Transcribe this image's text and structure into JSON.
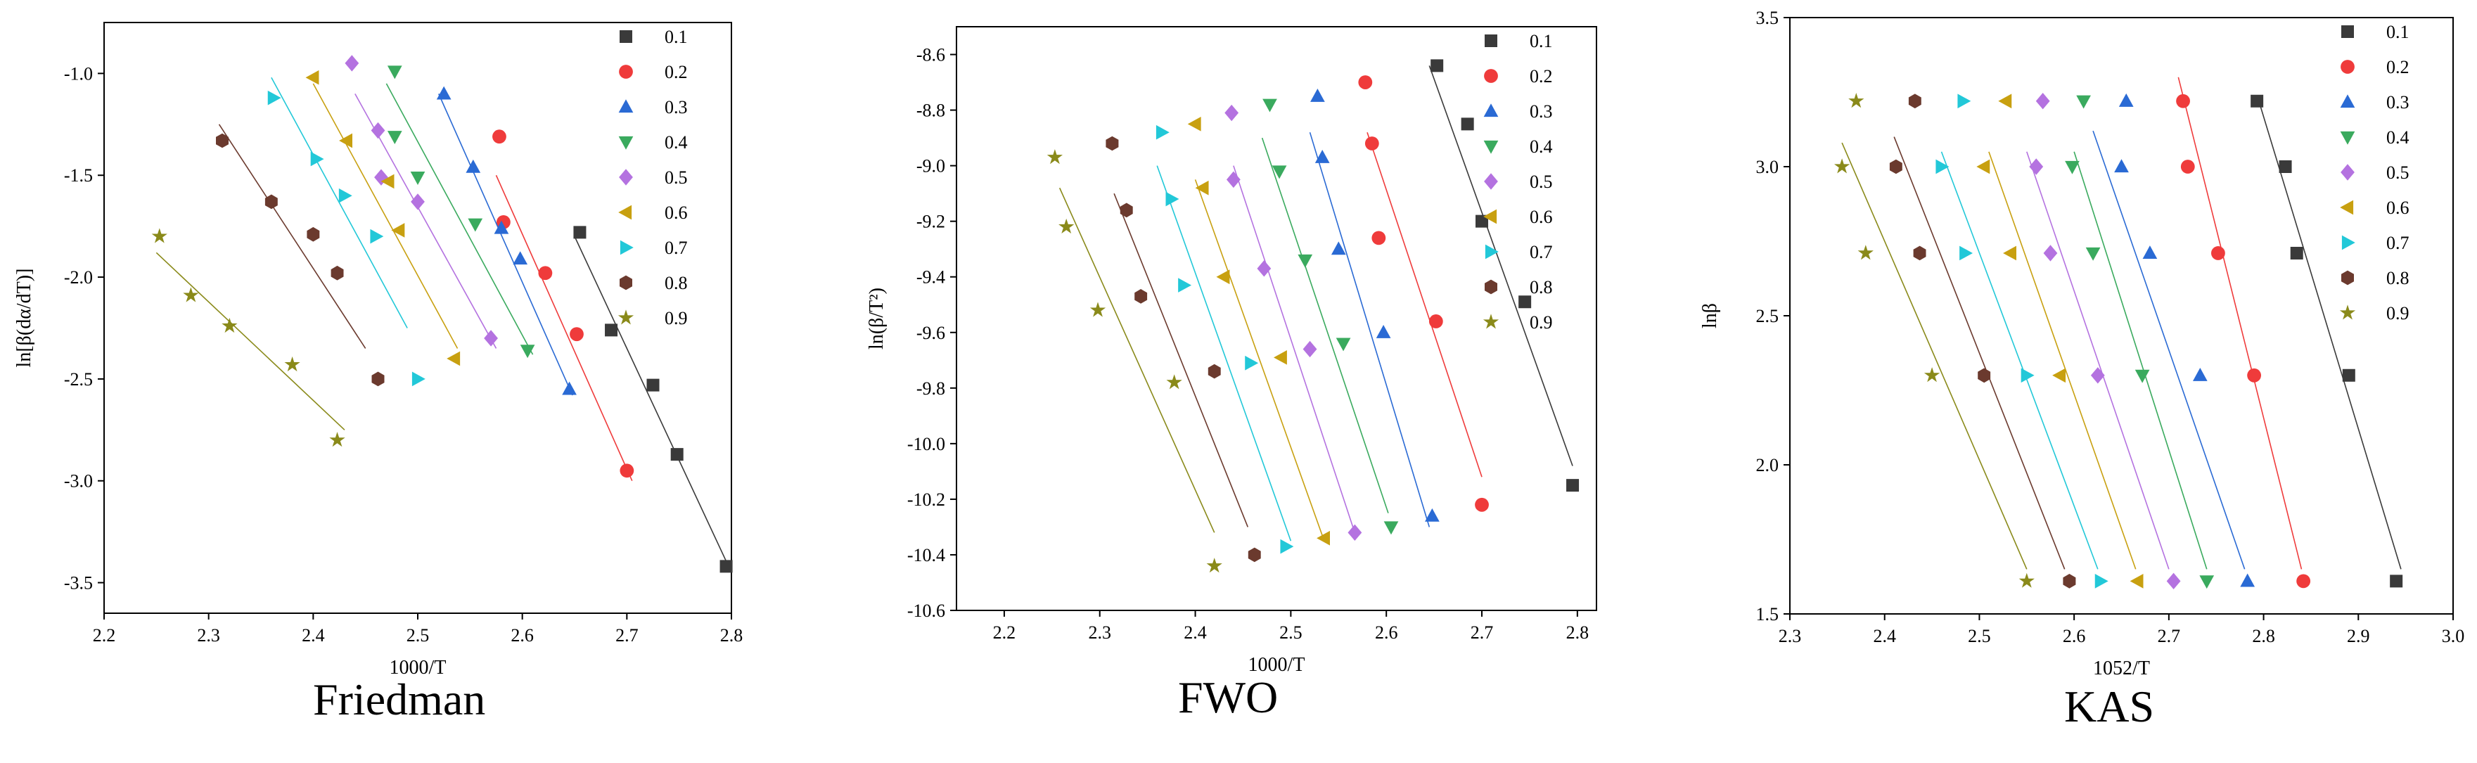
{
  "chart_data": [
    {
      "type": "scatter",
      "caption": "Friedman",
      "xlabel": "1000/T",
      "ylabel": "ln[β(dα/dT)]",
      "xlim": [
        2.2,
        2.8
      ],
      "ylim": [
        -3.65,
        -0.75
      ],
      "xticks": [
        "2.2",
        "2.3",
        "2.4",
        "2.5",
        "2.6",
        "2.7",
        "2.8"
      ],
      "yticks": [
        "-1.0",
        "-1.5",
        "-2.0",
        "-2.5",
        "-3.0",
        "-3.5"
      ],
      "legend_position": "top-right",
      "series": [
        {
          "name": "0.1",
          "color": "#3a3a3a",
          "marker": "square",
          "x": [
            2.655,
            2.685,
            2.725,
            2.748,
            2.795
          ],
          "y": [
            -1.78,
            -2.26,
            -2.53,
            -2.87,
            -3.42
          ],
          "fit": [
            [
              2.65,
              -1.8
            ],
            [
              2.8,
              -3.45
            ]
          ]
        },
        {
          "name": "0.2",
          "color": "#ef3b3b",
          "marker": "circle",
          "x": [
            2.578,
            2.582,
            2.622,
            2.652,
            2.7
          ],
          "y": [
            -1.31,
            -1.73,
            -1.98,
            -2.28,
            -2.95
          ],
          "fit": [
            [
              2.575,
              -1.5
            ],
            [
              2.705,
              -3.0
            ]
          ]
        },
        {
          "name": "0.3",
          "color": "#2a6ad4",
          "marker": "triangle-up",
          "x": [
            2.525,
            2.553,
            2.58,
            2.598,
            2.645
          ],
          "y": [
            -1.1,
            -1.46,
            -1.76,
            -1.91,
            -2.55
          ],
          "fit": [
            [
              2.52,
              -1.1
            ],
            [
              2.648,
              -2.58
            ]
          ]
        },
        {
          "name": "0.4",
          "color": "#3aaa5e",
          "marker": "triangle-down",
          "x": [
            2.478,
            2.478,
            2.5,
            2.555,
            2.605
          ],
          "y": [
            -0.99,
            -1.31,
            -1.51,
            -1.74,
            -2.36
          ],
          "fit": [
            [
              2.47,
              -1.05
            ],
            [
              2.61,
              -2.38
            ]
          ]
        },
        {
          "name": "0.5",
          "color": "#b472e0",
          "marker": "diamond",
          "x": [
            2.437,
            2.462,
            2.465,
            2.5,
            2.57
          ],
          "y": [
            -0.95,
            -1.28,
            -1.51,
            -1.63,
            -2.3
          ],
          "fit": [
            [
              2.44,
              -1.1
            ],
            [
              2.575,
              -2.35
            ]
          ]
        },
        {
          "name": "0.6",
          "color": "#c8a010",
          "marker": "triangle-left",
          "x": [
            2.4,
            2.432,
            2.472,
            2.482,
            2.535
          ],
          "y": [
            -1.02,
            -1.33,
            -1.53,
            -1.77,
            -2.4
          ],
          "fit": [
            [
              2.4,
              -1.05
            ],
            [
              2.538,
              -2.35
            ]
          ]
        },
        {
          "name": "0.7",
          "color": "#22c8d8",
          "marker": "triangle-right",
          "x": [
            2.362,
            2.403,
            2.43,
            2.46,
            2.5
          ],
          "y": [
            -1.12,
            -1.42,
            -1.6,
            -1.8,
            -2.5
          ],
          "fit": [
            [
              2.36,
              -1.02
            ],
            [
              2.49,
              -2.25
            ]
          ]
        },
        {
          "name": "0.8",
          "color": "#6b3a2e",
          "marker": "hexagon",
          "x": [
            2.313,
            2.36,
            2.4,
            2.423,
            2.462
          ],
          "y": [
            -1.33,
            -1.63,
            -1.79,
            -1.98,
            -2.5
          ],
          "fit": [
            [
              2.31,
              -1.25
            ],
            [
              2.45,
              -2.35
            ]
          ]
        },
        {
          "name": "0.9",
          "color": "#8a8a1a",
          "marker": "star",
          "x": [
            2.253,
            2.283,
            2.32,
            2.38,
            2.423
          ],
          "y": [
            -1.8,
            -2.09,
            -2.24,
            -2.43,
            -2.8
          ],
          "fit": [
            [
              2.25,
              -1.88
            ],
            [
              2.43,
              -2.75
            ]
          ]
        }
      ]
    },
    {
      "type": "scatter",
      "caption": "FWO",
      "xlabel": "1000/T",
      "ylabel": "ln(β/T²)",
      "xlim": [
        2.15,
        2.82
      ],
      "ylim": [
        -10.6,
        -8.5
      ],
      "xticks": [
        "2.2",
        "2.3",
        "2.4",
        "2.5",
        "2.6",
        "2.7",
        "2.8"
      ],
      "yticks": [
        "-8.6",
        "-8.8",
        "-9.0",
        "-9.2",
        "-9.4",
        "-9.6",
        "-9.8",
        "-10.0",
        "-10.2",
        "-10.4",
        "-10.6"
      ],
      "legend_position": "top-right",
      "series": [
        {
          "name": "0.1",
          "color": "#3a3a3a",
          "marker": "square",
          "x": [
            2.653,
            2.685,
            2.7,
            2.745,
            2.795
          ],
          "y": [
            -8.64,
            -8.85,
            -9.2,
            -9.49,
            -10.15
          ],
          "fit": [
            [
              2.645,
              -8.64
            ],
            [
              2.795,
              -10.08
            ]
          ]
        },
        {
          "name": "0.2",
          "color": "#ef3b3b",
          "marker": "circle",
          "x": [
            2.578,
            2.585,
            2.592,
            2.652,
            2.7
          ],
          "y": [
            -8.7,
            -8.92,
            -9.26,
            -9.56,
            -10.22
          ],
          "fit": [
            [
              2.58,
              -8.88
            ],
            [
              2.7,
              -10.12
            ]
          ]
        },
        {
          "name": "0.3",
          "color": "#2a6ad4",
          "marker": "triangle-up",
          "x": [
            2.528,
            2.533,
            2.55,
            2.597,
            2.648
          ],
          "y": [
            -8.75,
            -8.97,
            -9.3,
            -9.6,
            -10.26
          ],
          "fit": [
            [
              2.52,
              -8.88
            ],
            [
              2.645,
              -10.3
            ]
          ]
        },
        {
          "name": "0.4",
          "color": "#3aaa5e",
          "marker": "triangle-down",
          "x": [
            2.478,
            2.488,
            2.515,
            2.555,
            2.605
          ],
          "y": [
            -8.78,
            -9.02,
            -9.34,
            -9.64,
            -10.3
          ],
          "fit": [
            [
              2.47,
              -8.9
            ],
            [
              2.602,
              -10.25
            ]
          ]
        },
        {
          "name": "0.5",
          "color": "#b472e0",
          "marker": "diamond",
          "x": [
            2.438,
            2.44,
            2.472,
            2.52,
            2.567
          ],
          "y": [
            -8.81,
            -9.05,
            -9.37,
            -9.66,
            -10.32
          ],
          "fit": [
            [
              2.44,
              -9.0
            ],
            [
              2.565,
              -10.3
            ]
          ]
        },
        {
          "name": "0.6",
          "color": "#c8a010",
          "marker": "triangle-left",
          "x": [
            2.4,
            2.408,
            2.43,
            2.49,
            2.535
          ],
          "y": [
            -8.85,
            -9.08,
            -9.4,
            -9.69,
            -10.34
          ],
          "fit": [
            [
              2.4,
              -9.05
            ],
            [
              2.535,
              -10.35
            ]
          ]
        },
        {
          "name": "0.7",
          "color": "#22c8d8",
          "marker": "triangle-right",
          "x": [
            2.365,
            2.375,
            2.388,
            2.458,
            2.495
          ],
          "y": [
            -8.88,
            -9.12,
            -9.43,
            -9.71,
            -10.37
          ],
          "fit": [
            [
              2.36,
              -9.0
            ],
            [
              2.5,
              -10.35
            ]
          ]
        },
        {
          "name": "0.8",
          "color": "#6b3a2e",
          "marker": "hexagon",
          "x": [
            2.313,
            2.328,
            2.343,
            2.42,
            2.462
          ],
          "y": [
            -8.92,
            -9.16,
            -9.47,
            -9.74,
            -10.4
          ],
          "fit": [
            [
              2.315,
              -9.1
            ],
            [
              2.455,
              -10.3
            ]
          ]
        },
        {
          "name": "0.9",
          "color": "#8a8a1a",
          "marker": "star",
          "x": [
            2.253,
            2.265,
            2.298,
            2.378,
            2.42
          ],
          "y": [
            -8.97,
            -9.22,
            -9.52,
            -9.78,
            -10.44
          ],
          "fit": [
            [
              2.258,
              -9.08
            ],
            [
              2.42,
              -10.32
            ]
          ]
        }
      ]
    },
    {
      "type": "scatter",
      "caption": "KAS",
      "xlabel": "1052/T",
      "ylabel": "lnβ",
      "xlim": [
        2.3,
        3.0
      ],
      "ylim": [
        1.5,
        3.5
      ],
      "xticks": [
        "2.3",
        "2.4",
        "2.5",
        "2.6",
        "2.7",
        "2.8",
        "2.9",
        "3.0"
      ],
      "yticks": [
        "1.5",
        "2.0",
        "2.5",
        "3.0",
        "3.5"
      ],
      "legend_position": "top-right",
      "series": [
        {
          "name": "0.1",
          "color": "#3a3a3a",
          "marker": "square",
          "x": [
            2.793,
            2.823,
            2.835,
            2.89,
            2.94
          ],
          "y": [
            3.22,
            3.0,
            2.71,
            2.3,
            1.61
          ],
          "fit": [
            [
              2.795,
              3.22
            ],
            [
              2.945,
              1.65
            ]
          ]
        },
        {
          "name": "0.2",
          "color": "#ef3b3b",
          "marker": "circle",
          "x": [
            2.715,
            2.72,
            2.752,
            2.79,
            2.842
          ],
          "y": [
            3.22,
            3.0,
            2.71,
            2.3,
            1.61
          ],
          "fit": [
            [
              2.71,
              3.3
            ],
            [
              2.84,
              1.65
            ]
          ]
        },
        {
          "name": "0.3",
          "color": "#2a6ad4",
          "marker": "triangle-up",
          "x": [
            2.655,
            2.65,
            2.68,
            2.733,
            2.783
          ],
          "y": [
            3.22,
            3.0,
            2.71,
            2.3,
            1.61
          ],
          "fit": [
            [
              2.62,
              3.12
            ],
            [
              2.78,
              1.65
            ]
          ]
        },
        {
          "name": "0.4",
          "color": "#3aaa5e",
          "marker": "triangle-down",
          "x": [
            2.61,
            2.598,
            2.62,
            2.672,
            2.74
          ],
          "y": [
            3.22,
            3.0,
            2.71,
            2.3,
            1.61
          ],
          "fit": [
            [
              2.6,
              3.05
            ],
            [
              2.74,
              1.65
            ]
          ]
        },
        {
          "name": "0.5",
          "color": "#b472e0",
          "marker": "diamond",
          "x": [
            2.567,
            2.56,
            2.575,
            2.625,
            2.705
          ],
          "y": [
            3.22,
            3.0,
            2.71,
            2.3,
            1.61
          ],
          "fit": [
            [
              2.55,
              3.05
            ],
            [
              2.7,
              1.65
            ]
          ]
        },
        {
          "name": "0.6",
          "color": "#c8a010",
          "marker": "triangle-left",
          "x": [
            2.528,
            2.505,
            2.533,
            2.585,
            2.667
          ],
          "y": [
            3.22,
            3.0,
            2.71,
            2.3,
            1.61
          ],
          "fit": [
            [
              2.51,
              3.05
            ],
            [
              2.665,
              1.65
            ]
          ]
        },
        {
          "name": "0.7",
          "color": "#22c8d8",
          "marker": "triangle-right",
          "x": [
            2.483,
            2.46,
            2.485,
            2.55,
            2.628
          ],
          "y": [
            3.22,
            3.0,
            2.71,
            2.3,
            1.61
          ],
          "fit": [
            [
              2.46,
              3.05
            ],
            [
              2.625,
              1.65
            ]
          ]
        },
        {
          "name": "0.8",
          "color": "#6b3a2e",
          "marker": "hexagon",
          "x": [
            2.432,
            2.412,
            2.437,
            2.505,
            2.595
          ],
          "y": [
            3.22,
            3.0,
            2.71,
            2.3,
            1.61
          ],
          "fit": [
            [
              2.41,
              3.1
            ],
            [
              2.59,
              1.65
            ]
          ]
        },
        {
          "name": "0.9",
          "color": "#8a8a1a",
          "marker": "star",
          "x": [
            2.37,
            2.355,
            2.38,
            2.45,
            2.55
          ],
          "y": [
            3.22,
            3.0,
            2.71,
            2.3,
            1.61
          ],
          "fit": [
            [
              2.355,
              3.08
            ],
            [
              2.55,
              1.65
            ]
          ]
        }
      ]
    }
  ]
}
